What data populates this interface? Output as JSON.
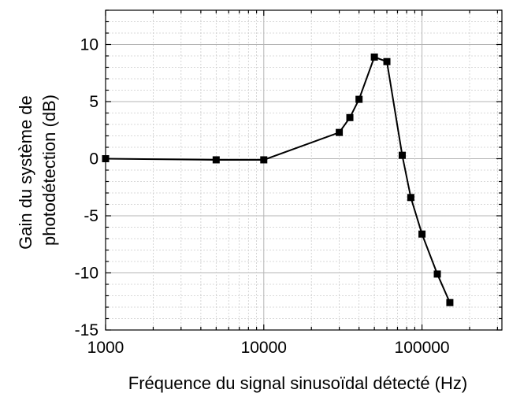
{
  "chart_data": {
    "type": "line",
    "title": "",
    "xlabel": "Fréquence du signal sinusoïdal détecté (Hz)",
    "ylabel_lines": [
      "Gain du système de",
      "photodétection (dB)"
    ],
    "x_scale": "log",
    "xlim": [
      1000,
      320000
    ],
    "ylim": [
      -15,
      13
    ],
    "x_ticks": [
      1000,
      10000,
      100000
    ],
    "x_tick_labels": [
      "1000",
      "10000",
      "100000"
    ],
    "y_ticks": [
      10,
      5,
      0,
      -5,
      -10,
      -15
    ],
    "y_tick_labels": [
      "10",
      "5",
      "0",
      "-5",
      "-10",
      "-15"
    ],
    "grid": true,
    "marker": "square",
    "series": [
      {
        "color": "#000000",
        "x": [
          1000,
          5000,
          10000,
          30000,
          35000,
          40000,
          50000,
          60000,
          75000,
          85000,
          100000,
          125000,
          150000
        ],
        "y": [
          0.0,
          -0.1,
          -0.1,
          2.3,
          3.6,
          5.2,
          8.9,
          8.5,
          0.3,
          -3.4,
          -6.6,
          -10.1,
          -12.6
        ]
      }
    ]
  }
}
